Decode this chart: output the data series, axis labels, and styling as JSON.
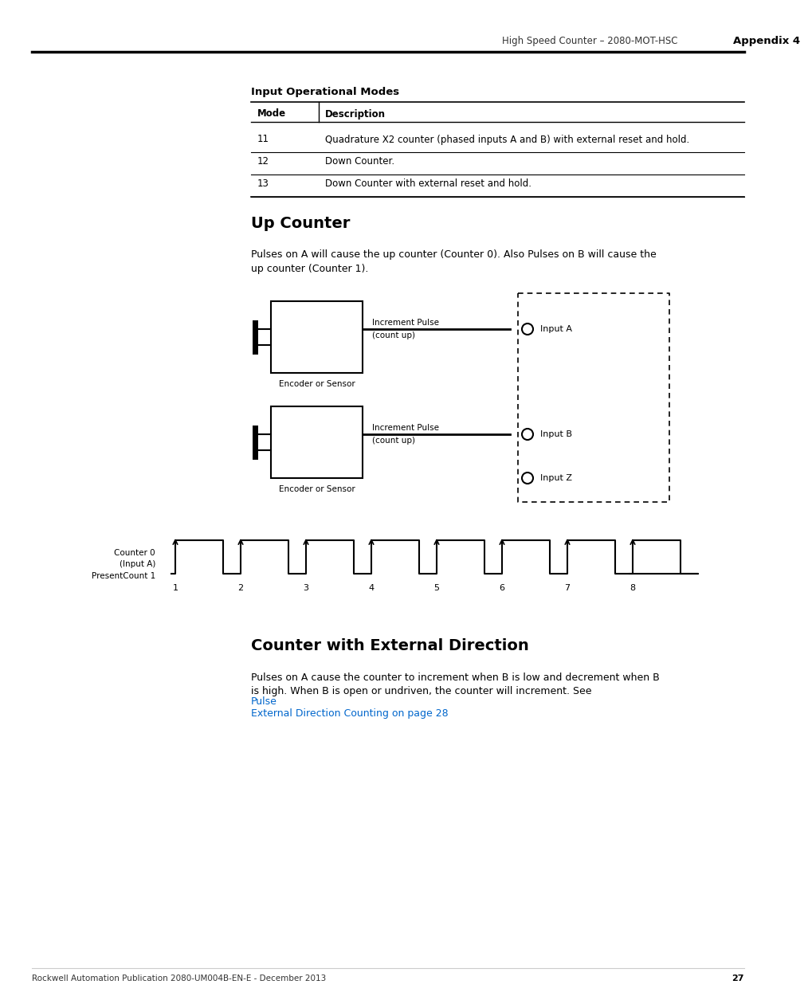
{
  "page_header_left": "High Speed Counter – 2080-MOT-HSC",
  "page_header_right": "Appendix 4",
  "page_number": "27",
  "footer_text": "Rockwell Automation Publication 2080-UM004B-EN-E - December 2013",
  "section_title": "Input Operational Modes",
  "table_headers": [
    "Mode",
    "Description"
  ],
  "table_rows": [
    [
      "11",
      "Quadrature X2 counter (phased inputs A and B) with external reset and hold."
    ],
    [
      "12",
      "Down Counter."
    ],
    [
      "13",
      "Down Counter with external reset and hold."
    ]
  ],
  "section2_title": "Up Counter",
  "section2_body": "Pulses on A will cause the up counter (Counter 0). Also Pulses on B will cause the\nup counter (Counter 1).",
  "section3_title": "Counter with External Direction",
  "section3_body1": "Pulses on A cause the counter to increment when B is low and decrement when B\nis high. When B is open or undriven, the counter will increment. See ",
  "section3_link": "Pulse\nExternal Direction Counting on page 28",
  "section3_body2": ".",
  "diagram_labels": {
    "encoder1": "Encoder or Sensor",
    "encoder2": "Encoder or Sensor",
    "label1": "Increment Pulse\n(count up)",
    "label2": "Increment Pulse\n(count up)",
    "input_a": "Input A",
    "input_b": "Input B",
    "input_z": "Input Z"
  },
  "waveform_labels": {
    "counter0": "Counter 0",
    "input_a": "(Input A)",
    "present_count": "PresentCount 1",
    "tick_labels": [
      "1",
      "2",
      "3",
      "4",
      "5",
      "6",
      "7",
      "8"
    ]
  },
  "bg_color": "#ffffff",
  "text_color": "#000000",
  "table_line_color": "#000000",
  "header_line_color": "#000000"
}
